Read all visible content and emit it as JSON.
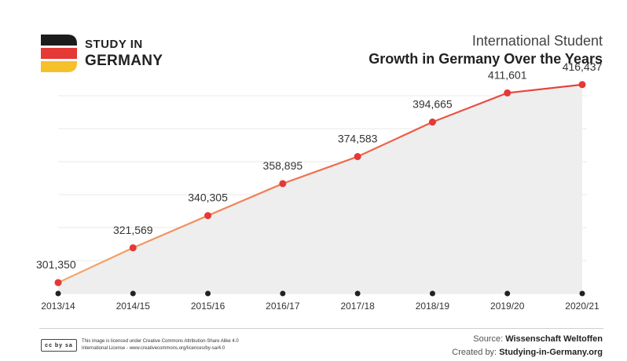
{
  "brand": {
    "line1": "STUDY IN",
    "line2": "GERMANY",
    "flag_colors": [
      "#1c1c1c",
      "#e53935",
      "#f6c02a"
    ]
  },
  "title": {
    "line1": "International Student",
    "line2": "Growth in Germany Over the Years"
  },
  "chart_data": {
    "type": "area",
    "title": "International Student Growth in Germany Over the Years",
    "categories": [
      "2013/14",
      "2014/15",
      "2015/16",
      "2016/17",
      "2017/18",
      "2018/19",
      "2019/20",
      "2020/21"
    ],
    "values": [
      301350,
      321569,
      340305,
      358895,
      374583,
      394665,
      411601,
      416437
    ],
    "value_labels": [
      "301,350",
      "321,569",
      "340,305",
      "358,895",
      "374,583",
      "394,665",
      "411,601",
      "416,437"
    ],
    "xlabel": "",
    "ylabel": "",
    "ylim": [
      295000,
      420000
    ],
    "grid": true,
    "line_colors": [
      "#f6a96a",
      "#e53935"
    ],
    "point_color": "#e53935",
    "tick_dot_color": "#222222",
    "fill_color": "#eeeeee"
  },
  "footer": {
    "license_badge": "cc by sa",
    "license_line1": "This image is licenced under Creative Commons Attribution-Share Alike 4.0",
    "license_line2": "International License - www.creativecommons.org/licences/by-sa/4.0",
    "source_label": "Source:",
    "source_value": "Wissenschaft Weltoffen",
    "created_label": "Created by:",
    "created_value": "Studying-in-Germany.org"
  }
}
